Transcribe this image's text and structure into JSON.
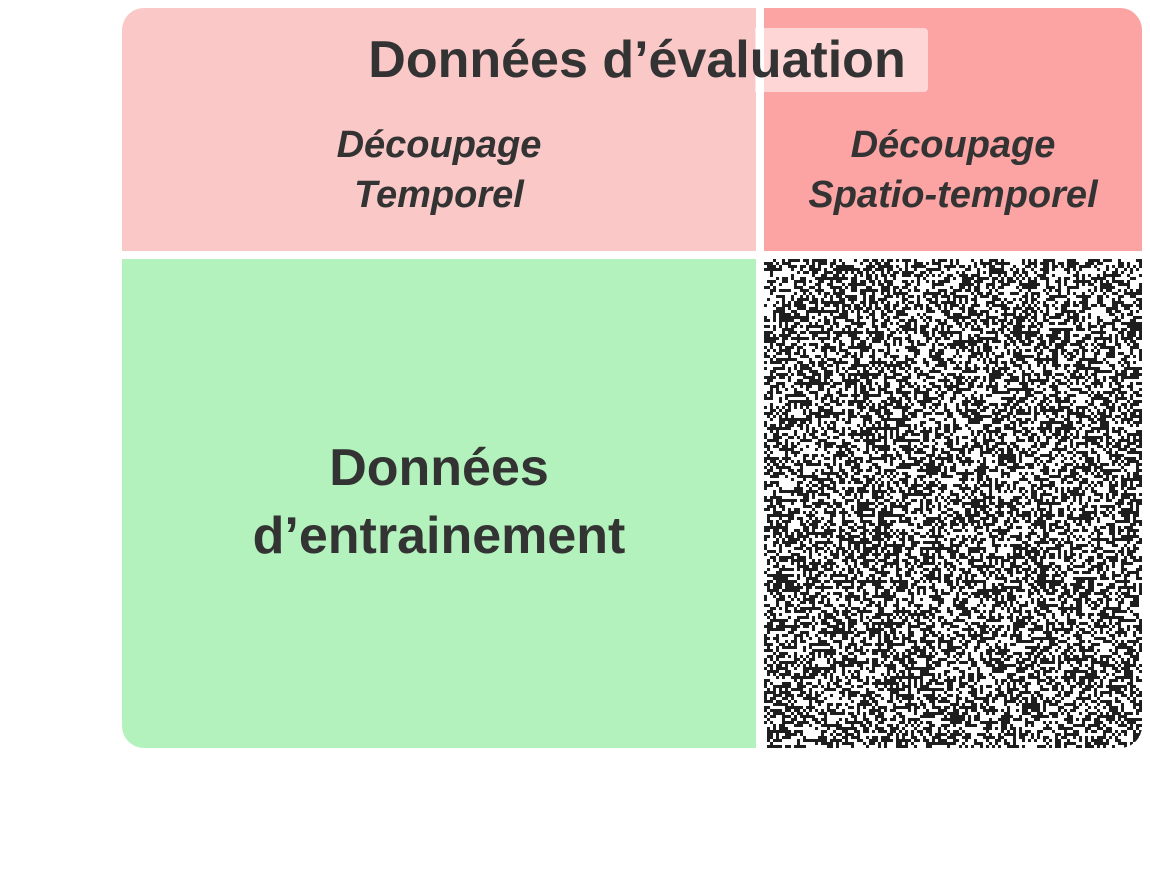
{
  "colors": {
    "eval_temporal": "#fbc8c8",
    "eval_spatio": "#fca3a3",
    "train": "#b3f2bc",
    "noise_dark": "#1e1e1e",
    "noise_light": "#ffffff",
    "text": "#333333"
  },
  "evaluation": {
    "title": "Données d’évaluation",
    "temporal": {
      "line1": "Découpage",
      "line2": "Temporel"
    },
    "spatio_temporal": {
      "line1": "Découpage",
      "line2": "Spatio-temporel"
    }
  },
  "training": {
    "line1": "Données",
    "line2": "d’entrainement"
  }
}
